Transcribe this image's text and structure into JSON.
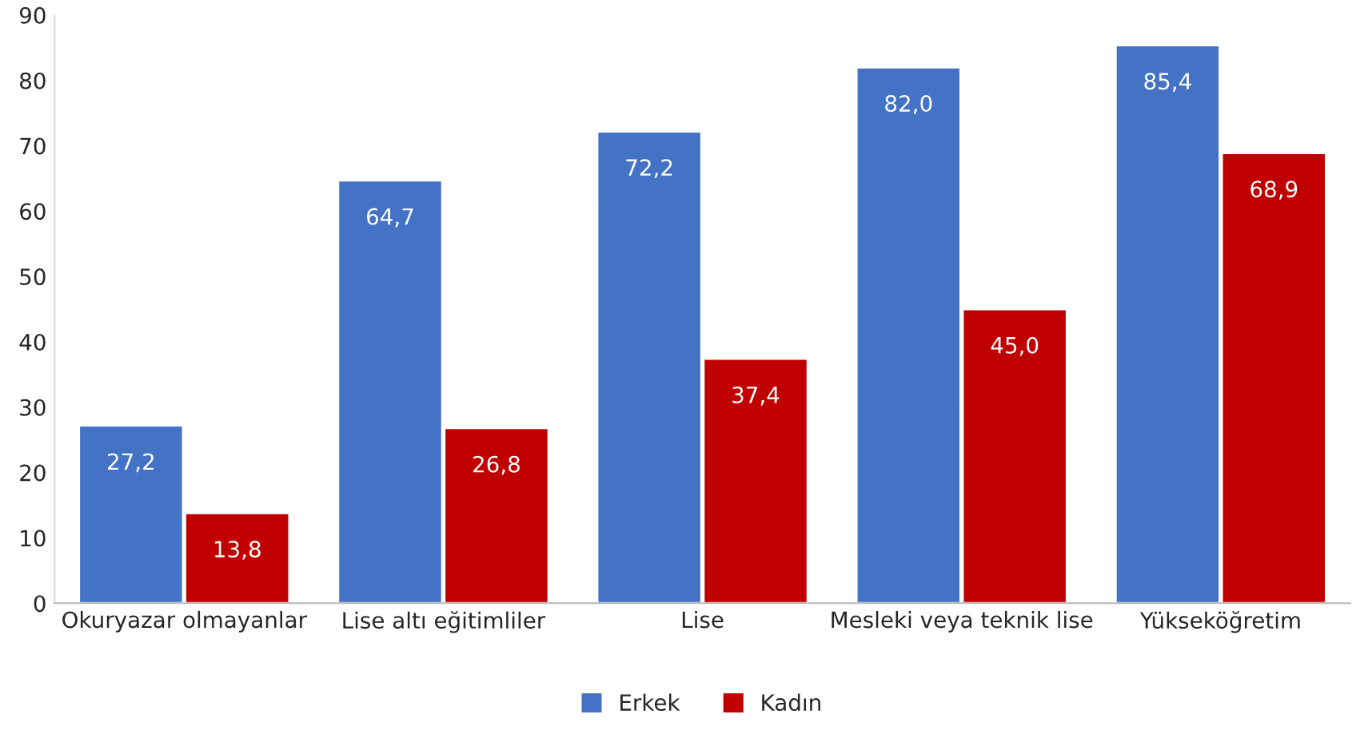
{
  "chart_data": {
    "type": "bar",
    "categories": [
      "Okuryazar olmayanlar",
      "Lise altı eğitimliler",
      "Lise",
      "Mesleki veya teknik lise",
      "Yükseköğretim"
    ],
    "series": [
      {
        "name": "Erkek",
        "color": "#4472c4",
        "values": [
          27.2,
          64.7,
          72.2,
          82.0,
          85.4
        ],
        "value_labels": [
          "27,2",
          "64,7",
          "72,2",
          "82,0",
          "85,4"
        ]
      },
      {
        "name": "Kadın",
        "color": "#c00000",
        "values": [
          13.8,
          26.8,
          37.4,
          45.0,
          68.9
        ],
        "value_labels": [
          "13,8",
          "26,8",
          "37,4",
          "45,0",
          "68,9"
        ]
      }
    ],
    "ylim": [
      0,
      90
    ],
    "yticks": [
      0,
      10,
      20,
      30,
      40,
      50,
      60,
      70,
      80,
      90
    ],
    "grid": false,
    "legend": "bottom"
  }
}
